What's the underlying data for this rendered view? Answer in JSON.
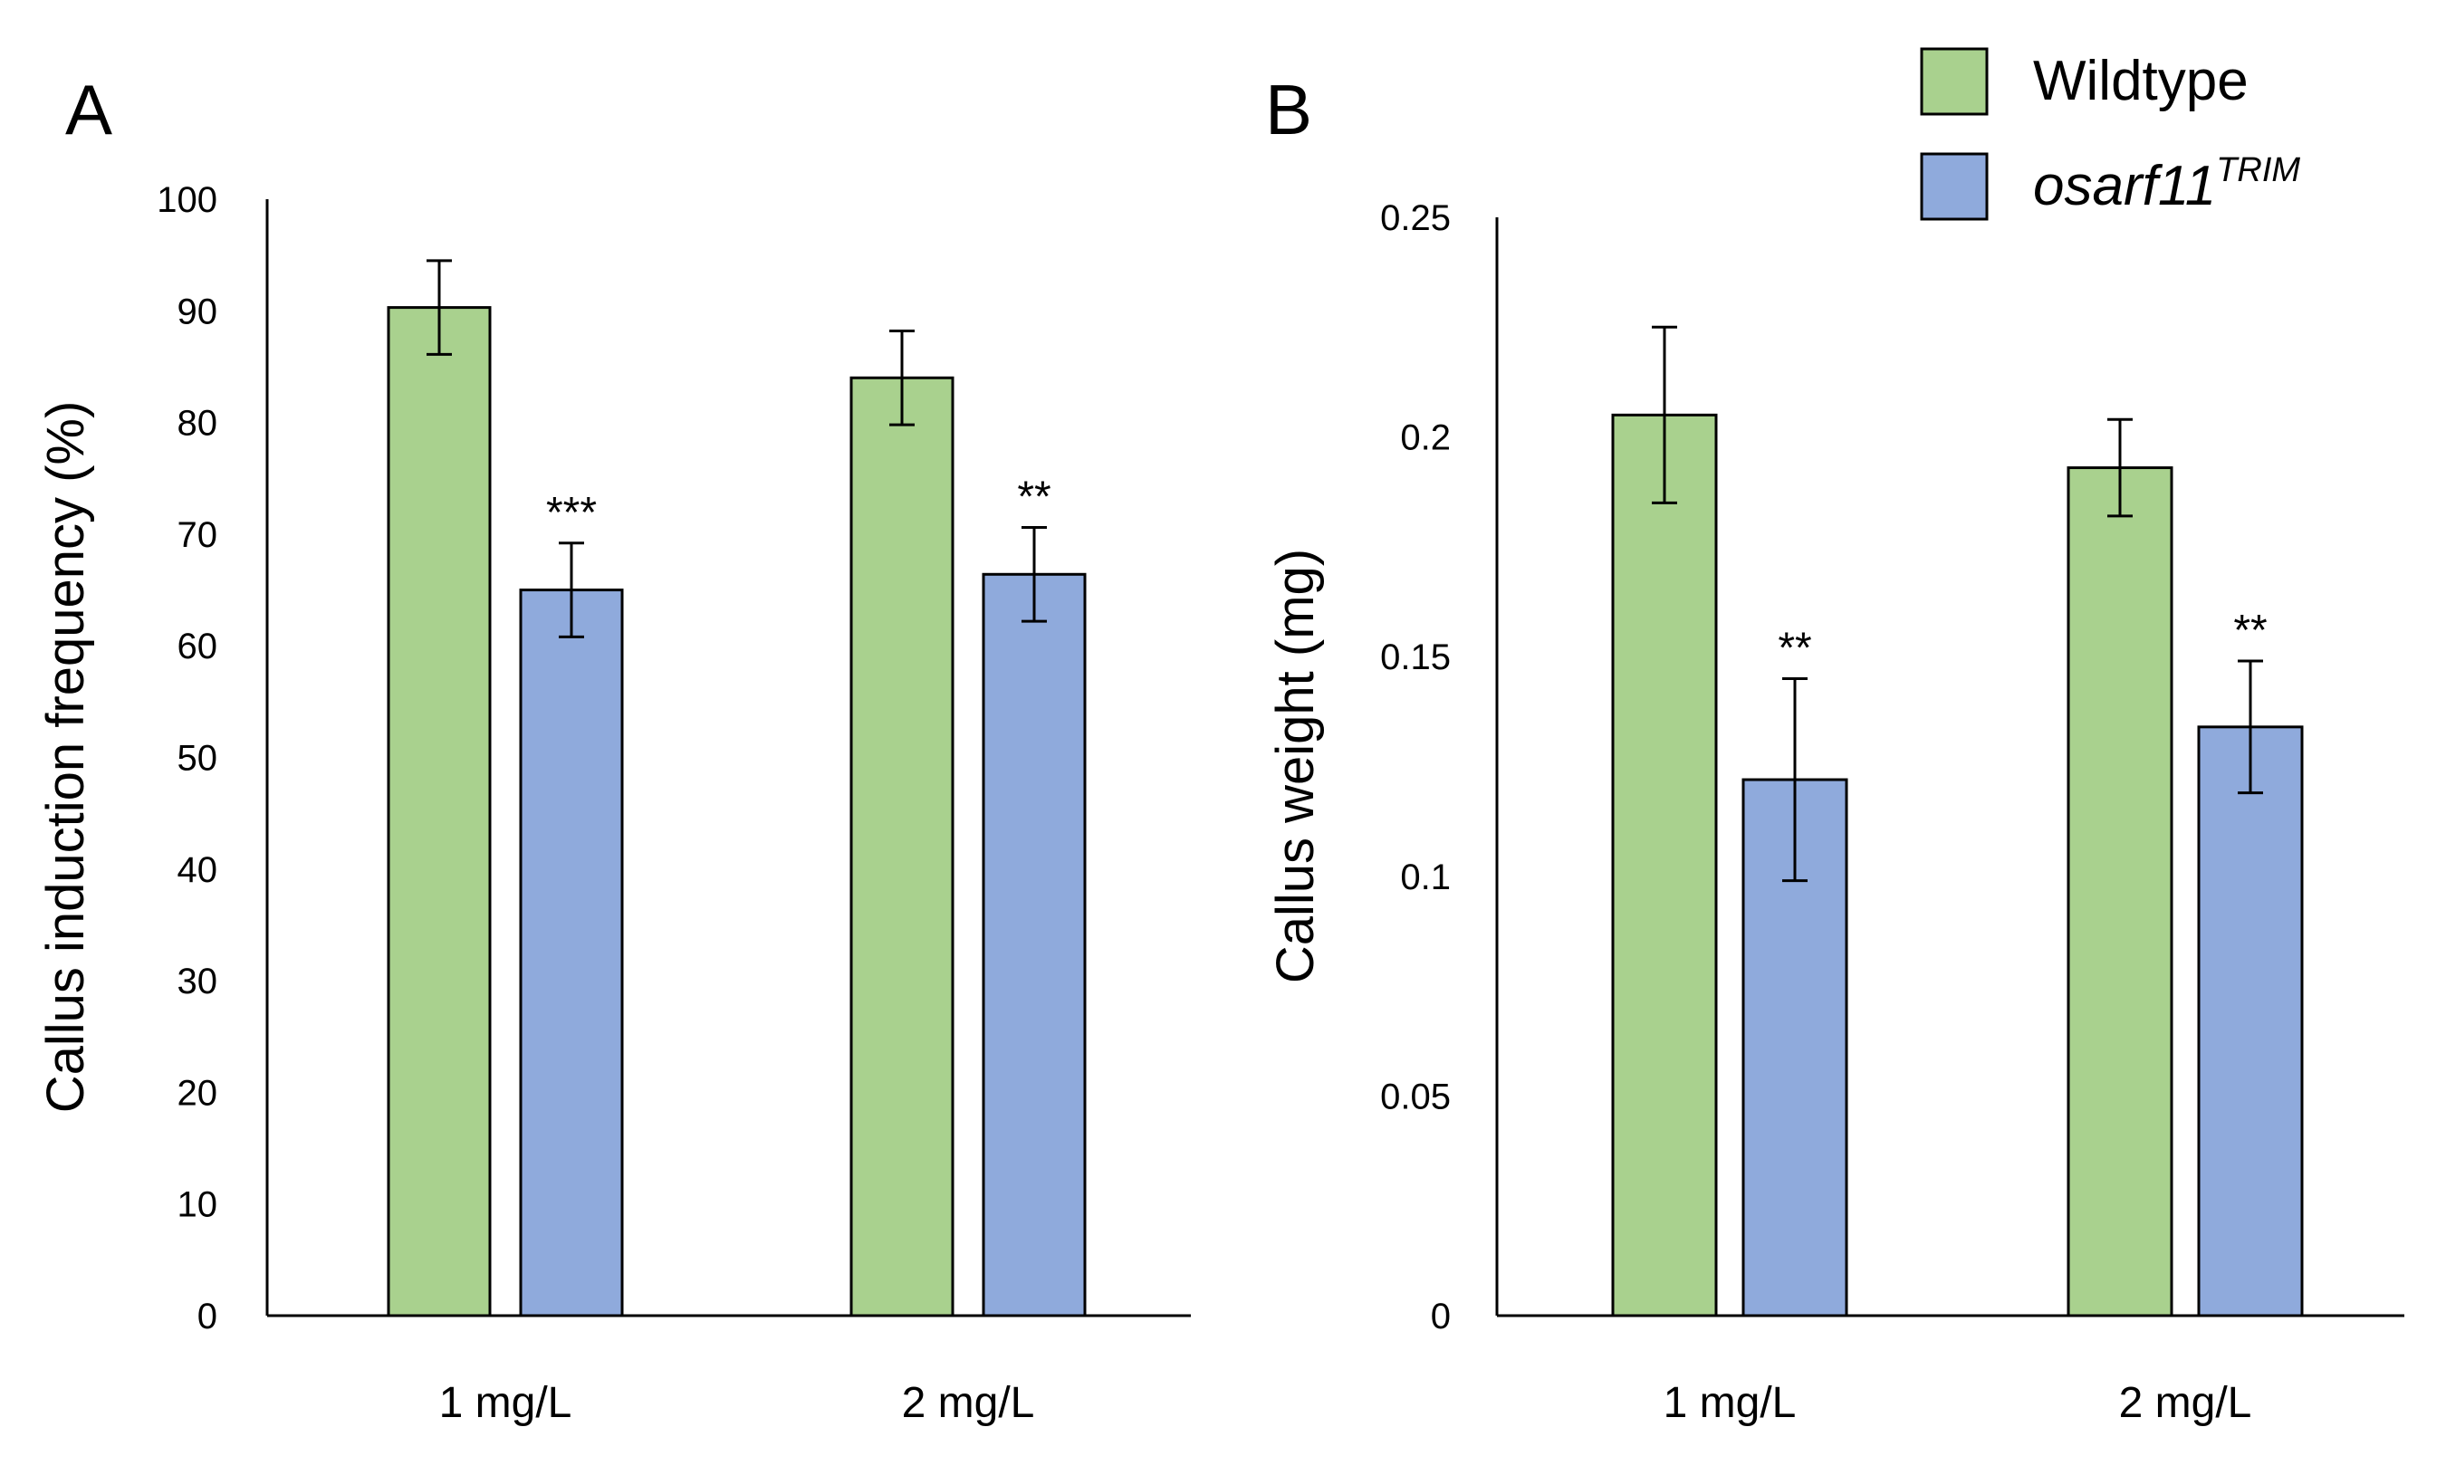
{
  "colors": {
    "wildtype": "#A9D18E",
    "mutant": "#8FAADC",
    "outline": "#000000"
  },
  "legend": {
    "items": [
      {
        "key": "wildtype",
        "label": "Wildtype",
        "italic": false,
        "sup": ""
      },
      {
        "key": "mutant",
        "label": "osarf11",
        "italic": true,
        "sup": "TRIM"
      }
    ]
  },
  "chart_data": [
    {
      "panel": "A",
      "type": "bar",
      "title": "",
      "xlabel": "",
      "ylabel": "Callus induction frequency (%)",
      "categories": [
        "1 mg/L",
        "2 mg/L"
      ],
      "ylim": [
        0,
        100
      ],
      "yticks": [
        0,
        10,
        20,
        30,
        40,
        50,
        60,
        70,
        80,
        90,
        100
      ],
      "ytick_labels": [
        "0",
        "10",
        "20",
        "30",
        "40",
        "50",
        "60",
        "70",
        "80",
        "90",
        "100"
      ],
      "series": [
        {
          "name": "Wildtype",
          "key": "wildtype",
          "values": [
            90.3,
            84.0
          ],
          "errors": [
            4.2,
            4.2
          ],
          "sig": [
            "",
            ""
          ]
        },
        {
          "name": "osarf11TRIM",
          "key": "mutant",
          "values": [
            65.0,
            66.4
          ],
          "errors": [
            4.2,
            4.2
          ],
          "sig": [
            "***",
            "**"
          ]
        }
      ]
    },
    {
      "panel": "B",
      "type": "bar",
      "title": "",
      "xlabel": "",
      "ylabel": "Callus weight (mg)",
      "categories": [
        "1 mg/L",
        "2 mg/L"
      ],
      "ylim": [
        0,
        0.25
      ],
      "yticks": [
        0,
        0.05,
        0.1,
        0.15,
        0.2,
        0.25
      ],
      "ytick_labels": [
        "0",
        "0.05",
        "0.1",
        "0.15",
        "0.2",
        "0.25"
      ],
      "series": [
        {
          "name": "Wildtype",
          "key": "wildtype",
          "values": [
            0.205,
            0.193
          ],
          "errors": [
            0.02,
            0.011
          ],
          "sig": [
            "",
            ""
          ]
        },
        {
          "name": "osarf11TRIM",
          "key": "mutant",
          "values": [
            0.122,
            0.134
          ],
          "errors": [
            0.023,
            0.015
          ],
          "sig": [
            "**",
            "**"
          ]
        }
      ]
    }
  ]
}
